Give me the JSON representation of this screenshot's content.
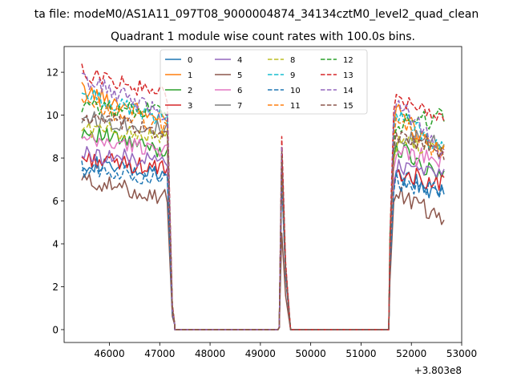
{
  "figure": {
    "suptitle": "ta file: modeM0/AS1A11_097T08_9000004874_34134cztM0_level2_quad_clean",
    "offset_label": "+3.803e8"
  },
  "chart_data": {
    "type": "line",
    "title": "Quadrant 1 module wise count rates with 100.0s bins.",
    "xlabel": "",
    "ylabel": "",
    "xlim": [
      45100,
      53000
    ],
    "ylim": [
      -0.6,
      13.2
    ],
    "x_offset": 380300000,
    "xticks": [
      46000,
      47000,
      48000,
      49000,
      50000,
      51000,
      52000,
      53000
    ],
    "yticks": [
      0,
      2,
      4,
      6,
      8,
      10,
      12
    ],
    "grid": false,
    "legend": {
      "placement": "top-center",
      "columns": 4
    },
    "series": [
      {
        "name": "0",
        "color": "#1f77b4",
        "style": "solid",
        "start": 7.8,
        "end": 6.3,
        "peak": 7.0
      },
      {
        "name": "1",
        "color": "#ff7f0e",
        "style": "solid",
        "start": 11.2,
        "end": 7.9,
        "peak": 8.0
      },
      {
        "name": "2",
        "color": "#2ca02c",
        "style": "solid",
        "start": 9.3,
        "end": 7.0,
        "peak": 7.8
      },
      {
        "name": "3",
        "color": "#d62728",
        "style": "solid",
        "start": 8.0,
        "end": 6.8,
        "peak": 7.3
      },
      {
        "name": "4",
        "color": "#9467bd",
        "style": "solid",
        "start": 8.2,
        "end": 7.4,
        "peak": 7.5
      },
      {
        "name": "5",
        "color": "#8c564b",
        "style": "solid",
        "start": 7.0,
        "end": 5.1,
        "peak": 4.5
      },
      {
        "name": "6",
        "color": "#e377c2",
        "style": "solid",
        "start": 8.8,
        "end": 8.0,
        "peak": 7.6
      },
      {
        "name": "7",
        "color": "#7f7f7f",
        "style": "solid",
        "start": 9.9,
        "end": 8.6,
        "peak": 8.0
      },
      {
        "name": "8",
        "color": "#bcbd22",
        "style": "dashed",
        "start": 9.4,
        "end": 8.5,
        "peak": 7.8
      },
      {
        "name": "9",
        "color": "#17becf",
        "style": "dashed",
        "start": 11.0,
        "end": 8.3,
        "peak": 8.0
      },
      {
        "name": "10",
        "color": "#1f77b4",
        "style": "dashed",
        "start": 7.5,
        "end": 6.5,
        "peak": 7.2
      },
      {
        "name": "11",
        "color": "#ff7f0e",
        "style": "dashed",
        "start": 10.5,
        "end": 8.2,
        "peak": 8.0
      },
      {
        "name": "12",
        "color": "#2ca02c",
        "style": "dashed",
        "start": 10.4,
        "end": 9.9,
        "peak": 8.2
      },
      {
        "name": "13",
        "color": "#d62728",
        "style": "dashed",
        "start": 12.0,
        "end": 9.6,
        "peak": 9.0
      },
      {
        "name": "14",
        "color": "#9467bd",
        "style": "dashed",
        "start": 11.7,
        "end": 8.0,
        "peak": 8.5
      },
      {
        "name": "15",
        "color": "#8c564b",
        "style": "dashed",
        "start": 9.9,
        "end": 8.3,
        "peak": 8.3
      }
    ],
    "segments": {
      "active1": {
        "x_start": 45450,
        "x_end": 47150,
        "step": 50
      },
      "drop1": [
        47250,
        47300
      ],
      "zero1": [
        47300,
        49350
      ],
      "peak_x": 49425,
      "rise_x": 49375,
      "fall_x": 49500,
      "zero2": [
        49600,
        51550
      ],
      "rise2": [
        51575,
        51650
      ],
      "active2": {
        "x_start": 51700,
        "x_end": 52650,
        "step": 50
      }
    }
  }
}
